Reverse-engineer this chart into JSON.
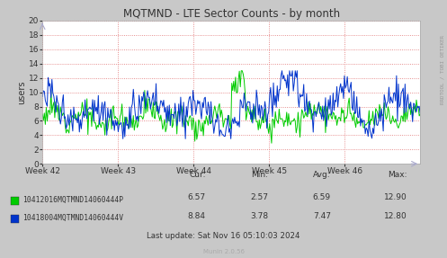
{
  "title": "MQTMND - LTE Sector Counts - by month",
  "ylabel": "users",
  "ylim": [
    0,
    20
  ],
  "yticks": [
    0,
    2,
    4,
    6,
    8,
    10,
    12,
    14,
    16,
    18,
    20
  ],
  "bg_color": "#c8c8c8",
  "plot_bg_color": "#ffffff",
  "grid_color": "#e07070",
  "line1_color": "#00cc00",
  "line2_color": "#0033cc",
  "legend1_label": "10412016MQTMND14060444P",
  "legend2_label": "10418004MQTMND14060444V",
  "cur1": "6.57",
  "min1": "2.57",
  "avg1": "6.59",
  "max1": "12.90",
  "cur2": "8.84",
  "min2": "3.78",
  "avg2": "7.47",
  "max2": "12.80",
  "last_update": "Last update: Sat Nov 16 05:10:03 2024",
  "munin_version": "Munin 2.0.56",
  "rrdtool_label": "RRDTOOL / TOBI OETIKER",
  "week_labels": [
    "Week 42",
    "Week 43",
    "Week 44",
    "Week 45",
    "Week 46"
  ],
  "n_points": 400,
  "seed": 12
}
